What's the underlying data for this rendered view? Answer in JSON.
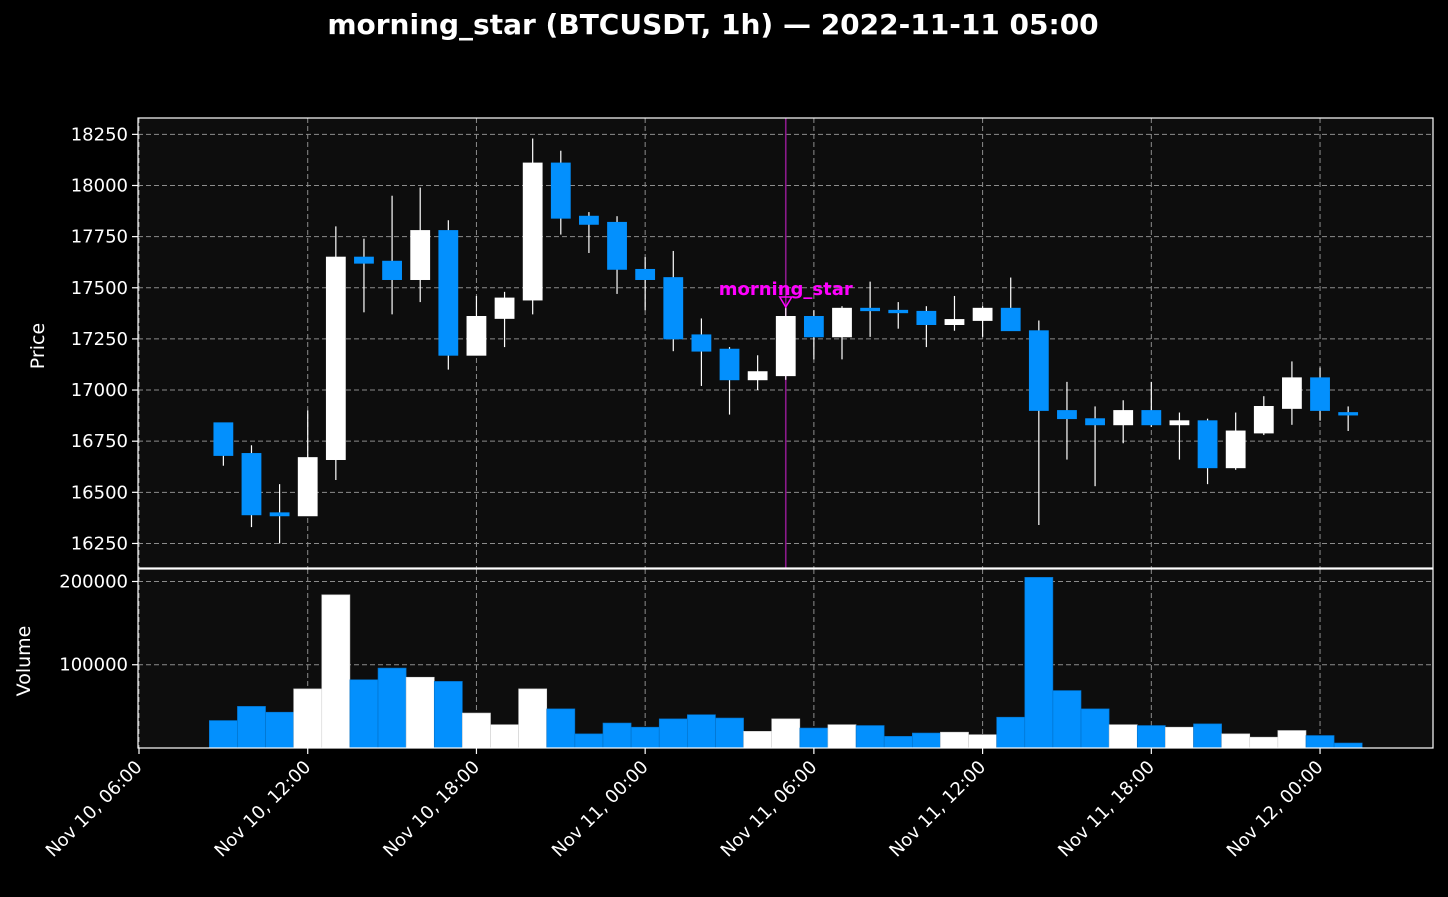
{
  "chart_data": {
    "type": "candlestick",
    "title": "morning_star (BTCUSDT, 1h) — 2022-11-11 05:00",
    "ylabel_price": "Price",
    "ylabel_volume": "Volume",
    "price_ylim": [
      16130,
      18330
    ],
    "volume_ylim": [
      0,
      215000
    ],
    "price_ticks": [
      "16250",
      "16500",
      "16750",
      "17000",
      "17250",
      "17500",
      "17750",
      "18000",
      "18250"
    ],
    "price_tick_values": [
      16250,
      16500,
      16750,
      17000,
      17250,
      17500,
      17750,
      18000,
      18250
    ],
    "volume_ticks": [
      "100000",
      "200000"
    ],
    "volume_tick_values": [
      100000,
      200000
    ],
    "x_ticks": [
      "Nov 10, 06:00",
      "Nov 10, 12:00",
      "Nov 10, 18:00",
      "Nov 11, 00:00",
      "Nov 11, 06:00",
      "Nov 11, 12:00",
      "Nov 11, 18:00",
      "Nov 12, 00:00"
    ],
    "x_tick_hours": [
      0,
      6,
      12,
      18,
      24,
      30,
      36,
      42
    ],
    "x_start": "2022-11-10 06:00",
    "x_end_hours": 46.6,
    "grid": true,
    "up_color": "#ffffff",
    "down_color": "#0390fd",
    "marker": {
      "label": "morning_star",
      "time": "2022-11-11 05:00",
      "hour": 23,
      "price": 17445,
      "color": "#ff00ff",
      "line_color": "#8b1a8b"
    },
    "candles": [
      {
        "t": "2022-11-10 09:00",
        "h": 3,
        "o": 16840,
        "hi": 16840,
        "lo": 16630,
        "c": 16680,
        "v": 33000
      },
      {
        "t": "2022-11-10 10:00",
        "h": 4,
        "o": 16690,
        "hi": 16730,
        "lo": 16330,
        "c": 16390,
        "v": 50000
      },
      {
        "t": "2022-11-10 11:00",
        "h": 5,
        "o": 16400,
        "hi": 16540,
        "lo": 16250,
        "c": 16385,
        "v": 43000
      },
      {
        "t": "2022-11-10 12:00",
        "h": 6,
        "o": 16385,
        "hi": 16900,
        "lo": 16385,
        "c": 16670,
        "v": 71000
      },
      {
        "t": "2022-11-10 13:00",
        "h": 7,
        "o": 16660,
        "hi": 17800,
        "lo": 16560,
        "c": 17650,
        "v": 184000
      },
      {
        "t": "2022-11-10 14:00",
        "h": 8,
        "o": 17650,
        "hi": 17740,
        "lo": 17380,
        "c": 17620,
        "v": 82000
      },
      {
        "t": "2022-11-10 15:00",
        "h": 9,
        "o": 17630,
        "hi": 17950,
        "lo": 17370,
        "c": 17540,
        "v": 96000
      },
      {
        "t": "2022-11-10 16:00",
        "h": 10,
        "o": 17540,
        "hi": 17990,
        "lo": 17430,
        "c": 17780,
        "v": 85000
      },
      {
        "t": "2022-11-10 17:00",
        "h": 11,
        "o": 17780,
        "hi": 17830,
        "lo": 17100,
        "c": 17170,
        "v": 80000
      },
      {
        "t": "2022-11-10 18:00",
        "h": 12,
        "o": 17170,
        "hi": 17460,
        "lo": 17170,
        "c": 17360,
        "v": 42000
      },
      {
        "t": "2022-11-10 19:00",
        "h": 13,
        "o": 17350,
        "hi": 17480,
        "lo": 17210,
        "c": 17450,
        "v": 28000
      },
      {
        "t": "2022-11-10 20:00",
        "h": 14,
        "o": 17440,
        "hi": 18230,
        "lo": 17370,
        "c": 18110,
        "v": 71000
      },
      {
        "t": "2022-11-10 21:00",
        "h": 15,
        "o": 18110,
        "hi": 18170,
        "lo": 17760,
        "c": 17840,
        "v": 47000
      },
      {
        "t": "2022-11-10 22:00",
        "h": 16,
        "o": 17850,
        "hi": 17870,
        "lo": 17670,
        "c": 17810,
        "v": 17000
      },
      {
        "t": "2022-11-10 23:00",
        "h": 17,
        "o": 17820,
        "hi": 17850,
        "lo": 17470,
        "c": 17590,
        "v": 30000
      },
      {
        "t": "2022-11-11 00:00",
        "h": 18,
        "o": 17590,
        "hi": 17650,
        "lo": 17390,
        "c": 17540,
        "v": 25000
      },
      {
        "t": "2022-11-11 01:00",
        "h": 19,
        "o": 17550,
        "hi": 17680,
        "lo": 17190,
        "c": 17250,
        "v": 35000
      },
      {
        "t": "2022-11-11 02:00",
        "h": 20,
        "o": 17270,
        "hi": 17350,
        "lo": 17020,
        "c": 17190,
        "v": 40000
      },
      {
        "t": "2022-11-11 03:00",
        "h": 21,
        "o": 17200,
        "hi": 17210,
        "lo": 16880,
        "c": 17050,
        "v": 36000
      },
      {
        "t": "2022-11-11 04:00",
        "h": 22,
        "o": 17050,
        "hi": 17170,
        "lo": 17000,
        "c": 17090,
        "v": 20000
      },
      {
        "t": "2022-11-11 05:00",
        "h": 23,
        "o": 17070,
        "hi": 17410,
        "lo": 17050,
        "c": 17360,
        "v": 35000
      },
      {
        "t": "2022-11-11 06:00",
        "h": 24,
        "o": 17360,
        "hi": 17390,
        "lo": 17150,
        "c": 17260,
        "v": 24000
      },
      {
        "t": "2022-11-11 07:00",
        "h": 25,
        "o": 17260,
        "hi": 17410,
        "lo": 17150,
        "c": 17400,
        "v": 28000
      },
      {
        "t": "2022-11-11 08:00",
        "h": 26,
        "o": 17400,
        "hi": 17530,
        "lo": 17260,
        "c": 17390,
        "v": 27000
      },
      {
        "t": "2022-11-11 09:00",
        "h": 27,
        "o": 17390,
        "hi": 17430,
        "lo": 17300,
        "c": 17385,
        "v": 14000
      },
      {
        "t": "2022-11-11 10:00",
        "h": 28,
        "o": 17385,
        "hi": 17410,
        "lo": 17210,
        "c": 17320,
        "v": 18000
      },
      {
        "t": "2022-11-11 11:00",
        "h": 29,
        "o": 17320,
        "hi": 17460,
        "lo": 17290,
        "c": 17345,
        "v": 19000
      },
      {
        "t": "2022-11-11 12:00",
        "h": 30,
        "o": 17340,
        "hi": 17410,
        "lo": 17260,
        "c": 17400,
        "v": 16000
      },
      {
        "t": "2022-11-11 13:00",
        "h": 31,
        "o": 17400,
        "hi": 17550,
        "lo": 17290,
        "c": 17290,
        "v": 37000
      },
      {
        "t": "2022-11-11 14:00",
        "h": 32,
        "o": 17290,
        "hi": 17340,
        "lo": 16340,
        "c": 16900,
        "v": 205000
      },
      {
        "t": "2022-11-11 15:00",
        "h": 33,
        "o": 16900,
        "hi": 17040,
        "lo": 16660,
        "c": 16860,
        "v": 69000
      },
      {
        "t": "2022-11-11 16:00",
        "h": 34,
        "o": 16860,
        "hi": 16920,
        "lo": 16530,
        "c": 16830,
        "v": 47000
      },
      {
        "t": "2022-11-11 17:00",
        "h": 35,
        "o": 16830,
        "hi": 16950,
        "lo": 16740,
        "c": 16900,
        "v": 28000
      },
      {
        "t": "2022-11-11 18:00",
        "h": 36,
        "o": 16900,
        "hi": 17040,
        "lo": 16820,
        "c": 16830,
        "v": 27000
      },
      {
        "t": "2022-11-11 19:00",
        "h": 37,
        "o": 16830,
        "hi": 16890,
        "lo": 16660,
        "c": 16850,
        "v": 25000
      },
      {
        "t": "2022-11-11 20:00",
        "h": 38,
        "o": 16850,
        "hi": 16860,
        "lo": 16540,
        "c": 16620,
        "v": 29000
      },
      {
        "t": "2022-11-11 21:00",
        "h": 39,
        "o": 16620,
        "hi": 16890,
        "lo": 16610,
        "c": 16800,
        "v": 17000
      },
      {
        "t": "2022-11-11 22:00",
        "h": 40,
        "o": 16790,
        "hi": 16970,
        "lo": 16780,
        "c": 16920,
        "v": 13000
      },
      {
        "t": "2022-11-11 23:00",
        "h": 41,
        "o": 16910,
        "hi": 17140,
        "lo": 16830,
        "c": 17060,
        "v": 21000
      },
      {
        "t": "2022-11-12 00:00",
        "h": 42,
        "o": 17060,
        "hi": 17110,
        "lo": 16850,
        "c": 16900,
        "v": 15000
      },
      {
        "t": "2022-11-12 01:00",
        "h": 43,
        "o": 16890,
        "hi": 16920,
        "lo": 16800,
        "c": 16880,
        "v": 6000
      }
    ]
  }
}
